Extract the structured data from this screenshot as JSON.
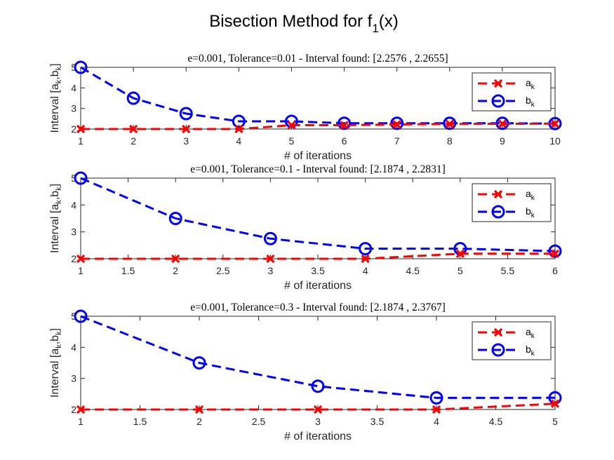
{
  "figure": {
    "title_main": "Bisection Method for f",
    "title_sub": "1",
    "title_tail": "(x)"
  },
  "colors": {
    "a": "#ff0000",
    "b": "#0000ff"
  },
  "chart_data": [
    {
      "type": "line",
      "title": "e=0.001, Tolerance=0.01 - Interval found: [2.2576 , 2.2655]",
      "xlabel": "# of iterations",
      "ylabel_parts": [
        "Interval [a",
        "k",
        ",b",
        "k",
        "]"
      ],
      "xlim": [
        1,
        10
      ],
      "ylim": [
        2,
        5
      ],
      "xticks": [
        1,
        2,
        3,
        4,
        5,
        6,
        7,
        8,
        9,
        10
      ],
      "yticks": [
        2,
        3,
        4,
        5
      ],
      "x": [
        1,
        2,
        3,
        4,
        5,
        6,
        7,
        8,
        9,
        10
      ],
      "series": [
        {
          "name": "a",
          "sub": "k",
          "marker": "x",
          "values": [
            2,
            2,
            2,
            2,
            2.1875,
            2.1875,
            2.2266,
            2.2461,
            2.2559,
            2.2576
          ]
        },
        {
          "name": "b",
          "sub": "k",
          "marker": "o",
          "values": [
            5,
            3.5,
            2.75,
            2.375,
            2.375,
            2.2813,
            2.2813,
            2.2813,
            2.2813,
            2.2655
          ]
        }
      ],
      "legend": "top-right"
    },
    {
      "type": "line",
      "title": "e=0.001, Tolerance=0.1 - Interval found: [2.1874 , 2.2831]",
      "xlabel": "# of iterations",
      "ylabel_parts": [
        "Interval [a",
        "k",
        ",b",
        "k",
        "]"
      ],
      "xlim": [
        1,
        6
      ],
      "ylim": [
        2,
        5
      ],
      "xticks": [
        1,
        1.5,
        2,
        2.5,
        3,
        3.5,
        4,
        4.5,
        5,
        5.5,
        6
      ],
      "yticks": [
        2,
        3,
        4,
        5
      ],
      "x": [
        1,
        2,
        3,
        4,
        5,
        6
      ],
      "series": [
        {
          "name": "a",
          "sub": "k",
          "marker": "x",
          "values": [
            2,
            2,
            2,
            2,
            2.1874,
            2.1874
          ]
        },
        {
          "name": "b",
          "sub": "k",
          "marker": "o",
          "values": [
            5,
            3.5,
            2.75,
            2.375,
            2.375,
            2.2831
          ]
        }
      ],
      "legend": "top-right"
    },
    {
      "type": "line",
      "title": "e=0.001, Tolerance=0.3 - Interval found: [2.1874 , 2.3767]",
      "xlabel": "# of iterations",
      "ylabel_parts": [
        "Interval [a",
        "k",
        ",b",
        "k",
        "]"
      ],
      "xlim": [
        1,
        5
      ],
      "ylim": [
        2,
        5
      ],
      "xticks": [
        1,
        1.5,
        2,
        2.5,
        3,
        3.5,
        4,
        4.5,
        5
      ],
      "yticks": [
        2,
        3,
        4,
        5
      ],
      "x": [
        1,
        2,
        3,
        4,
        5
      ],
      "series": [
        {
          "name": "a",
          "sub": "k",
          "marker": "x",
          "values": [
            2,
            2,
            2,
            2,
            2.1874
          ]
        },
        {
          "name": "b",
          "sub": "k",
          "marker": "o",
          "values": [
            5,
            3.5,
            2.75,
            2.375,
            2.3767
          ]
        }
      ],
      "legend": "top-right"
    }
  ]
}
